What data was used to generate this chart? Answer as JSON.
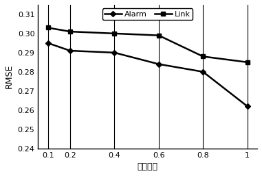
{
  "x": [
    0.1,
    0.2,
    0.4,
    0.6,
    0.8,
    1.0
  ],
  "alarm_y": [
    0.295,
    0.291,
    0.29,
    0.284,
    0.28,
    0.262
  ],
  "link_y": [
    0.303,
    0.301,
    0.3,
    0.299,
    0.288,
    0.285
  ],
  "xlabel": "训练预算",
  "ylabel": "RMSE",
  "ylim": [
    0.24,
    0.315
  ],
  "yticks": [
    0.24,
    0.25,
    0.26,
    0.27,
    0.28,
    0.29,
    0.3,
    0.31
  ],
  "xtick_labels": [
    "0.1",
    "0.2",
    "0.4",
    "0.6",
    "0.8",
    "1"
  ],
  "xticks": [
    0.1,
    0.2,
    0.4,
    0.6,
    0.8,
    1.0
  ],
  "legend_alarm": "Alarm",
  "legend_link": "Link",
  "line_color": "#000000",
  "bg_color": "#ffffff",
  "grid_color": "#000000"
}
